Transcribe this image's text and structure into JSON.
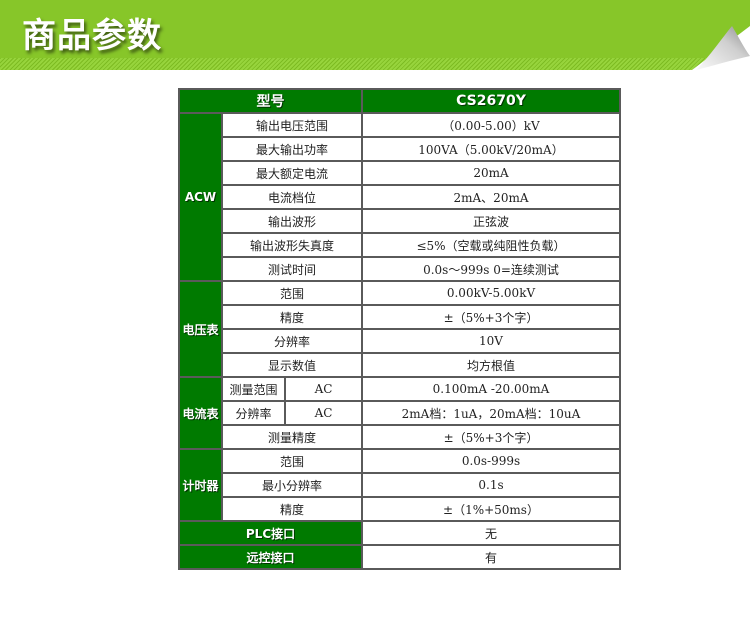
{
  "banner": {
    "title": "商品参数"
  },
  "table": {
    "header": {
      "label": "型号",
      "value": "CS2670Y"
    },
    "acw": {
      "group": "ACW",
      "rows": [
        {
          "label": "输出电压范围",
          "value": "（0.00-5.00）kV"
        },
        {
          "label": "最大输出功率",
          "value": "100VA（5.00kV/20mA）"
        },
        {
          "label": "最大额定电流",
          "value": "20mA"
        },
        {
          "label": "电流档位",
          "value": "2mA、20mA"
        },
        {
          "label": "输出波形",
          "value": "正弦波"
        },
        {
          "label": "输出波形失真度",
          "value": "≤5%（空载或纯阻性负载）"
        },
        {
          "label": "测试时间",
          "value": "0.0s～999s  0=连续测试"
        }
      ]
    },
    "voltmeter": {
      "group": "电压表",
      "rows": [
        {
          "label": "范围",
          "value": "0.00kV-5.00kV"
        },
        {
          "label": "精度",
          "value": "±（5%+3个字）"
        },
        {
          "label": "分辨率",
          "value": "10V"
        },
        {
          "label": "显示数值",
          "value": "均方根值"
        }
      ]
    },
    "ammeter": {
      "group": "电流表",
      "rows": [
        {
          "label": "测量范围",
          "sub": "AC",
          "value": "0.100mA -20.00mA"
        },
        {
          "label": "分辨率",
          "sub": "AC",
          "value": "2mA档：1uA，20mA档：10uA"
        },
        {
          "label": "测量精度",
          "value": "±（5%+3个字）"
        }
      ]
    },
    "timer": {
      "group": "计时器",
      "rows": [
        {
          "label": "范围",
          "value": "0.0s-999s"
        },
        {
          "label": "最小分辨率",
          "value": "0.1s"
        },
        {
          "label": "精度",
          "value": "±（1%+50ms）"
        }
      ]
    },
    "plc": {
      "label": "PLC接口",
      "value": "无"
    },
    "remote": {
      "label": "远控接口",
      "value": "有"
    }
  }
}
